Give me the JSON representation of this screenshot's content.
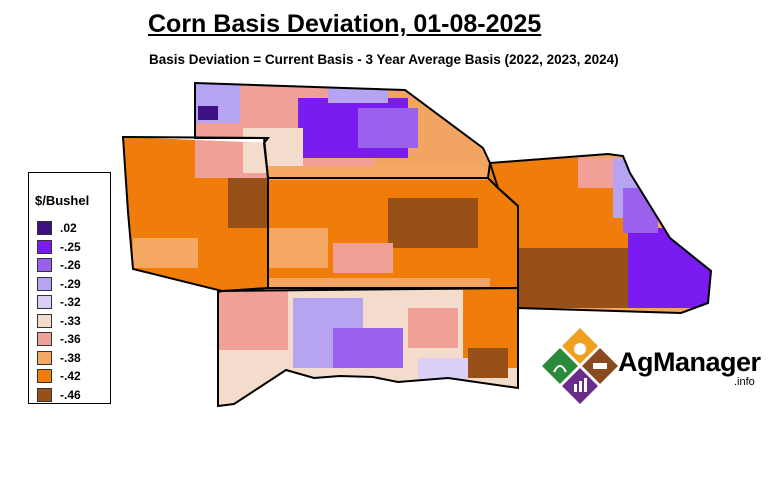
{
  "title": "Corn Basis Deviation, 01-08-2025",
  "subtitle": "Basis Deviation = Current Basis - 3 Year Average Basis (2022, 2023, 2024)",
  "legend": {
    "title": "$/Bushel",
    "items": [
      {
        "label": ".02",
        "color": "#3d0f80"
      },
      {
        "label": "-.25",
        "color": "#7a1cf0"
      },
      {
        "label": "-.26",
        "color": "#9a62ec"
      },
      {
        "label": "-.29",
        "color": "#b6a4f2"
      },
      {
        "label": "-.32",
        "color": "#dccff5"
      },
      {
        "label": "-.33",
        "color": "#f4dccd"
      },
      {
        "label": "-.36",
        "color": "#f0a096"
      },
      {
        "label": "-.38",
        "color": "#f4a862"
      },
      {
        "label": "-.42",
        "color": "#f07c0a"
      },
      {
        "label": "-.46",
        "color": "#985018"
      }
    ]
  },
  "logo": {
    "name": "AgManager",
    "suffix": ".info"
  }
}
